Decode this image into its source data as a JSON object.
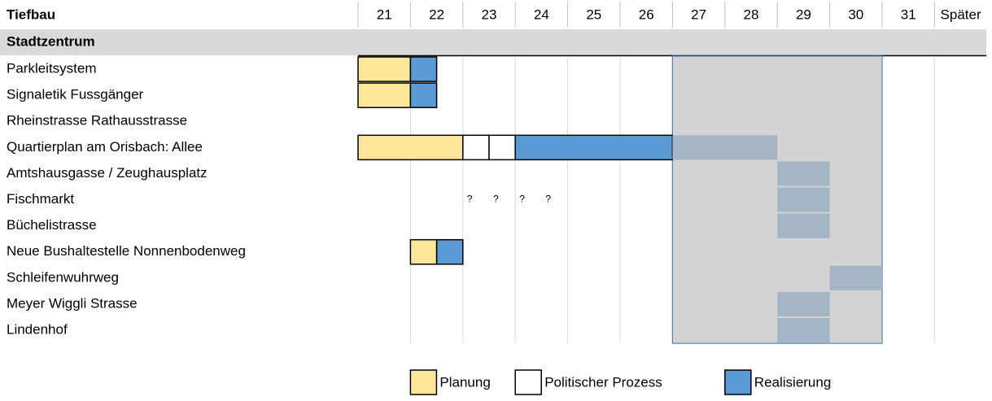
{
  "chart_data": {
    "type": "gantt",
    "title": "Tiefbau",
    "columns": [
      21,
      22,
      23,
      24,
      25,
      26,
      27,
      28,
      29,
      30,
      31,
      "Später"
    ],
    "section": "Stadtzentrum",
    "legend": [
      {
        "name": "Planung",
        "color": "#ffe699"
      },
      {
        "name": "Politischer Prozess",
        "color": "#ffffff"
      },
      {
        "name": "Realisierung",
        "color": "#5b9bd5"
      }
    ],
    "window": {
      "start": 27,
      "end": 31,
      "color": "#d3d3d3",
      "border": "#4f81bd"
    },
    "tentative_color": "#a6b5c6",
    "rows": [
      {
        "label": "Parkleitsystem",
        "segments": [
          {
            "start": 21,
            "end": 22,
            "phase": 0
          },
          {
            "start": 22,
            "end": 22.5,
            "phase": 2
          }
        ]
      },
      {
        "label": "Signaletik Fussgänger",
        "segments": [
          {
            "start": 21,
            "end": 22,
            "phase": 0
          },
          {
            "start": 22,
            "end": 22.5,
            "phase": 2
          }
        ]
      },
      {
        "label": "Rheinstrasse Rathausstrasse",
        "segments": []
      },
      {
        "label": "Quartierplan am Orisbach: Allee",
        "segments": [
          {
            "start": 21,
            "end": 23,
            "phase": 0
          },
          {
            "start": 23,
            "end": 23.5,
            "phase": 1
          },
          {
            "start": 23.5,
            "end": 24,
            "phase": 1
          },
          {
            "start": 24,
            "end": 27,
            "phase": 2
          },
          {
            "start": 27,
            "end": 29
          }
        ]
      },
      {
        "label": "Amtshausgasse / Zeughausplatz",
        "segments": [
          {
            "start": 29,
            "end": 30
          }
        ]
      },
      {
        "label": "Fischmarkt",
        "segments": [
          {
            "start": 29,
            "end": 30
          }
        ],
        "notes": [
          "?",
          "?",
          "?",
          "?"
        ]
      },
      {
        "label": "Büchelistrasse",
        "segments": [
          {
            "start": 29,
            "end": 30
          }
        ]
      },
      {
        "label": "Neue Bushaltestelle Nonnenbodenweg",
        "segments": [
          {
            "start": 22,
            "end": 22.5,
            "phase": 0
          },
          {
            "start": 22.5,
            "end": 23,
            "phase": 2
          }
        ]
      },
      {
        "label": "Schleifenwuhrweg",
        "segments": [
          {
            "start": 30,
            "end": 31
          }
        ]
      },
      {
        "label": "Meyer Wiggli Strasse",
        "segments": [
          {
            "start": 29,
            "end": 30
          }
        ]
      },
      {
        "label": "Lindenhof",
        "segments": [
          {
            "start": 29,
            "end": 30
          }
        ]
      }
    ]
  }
}
